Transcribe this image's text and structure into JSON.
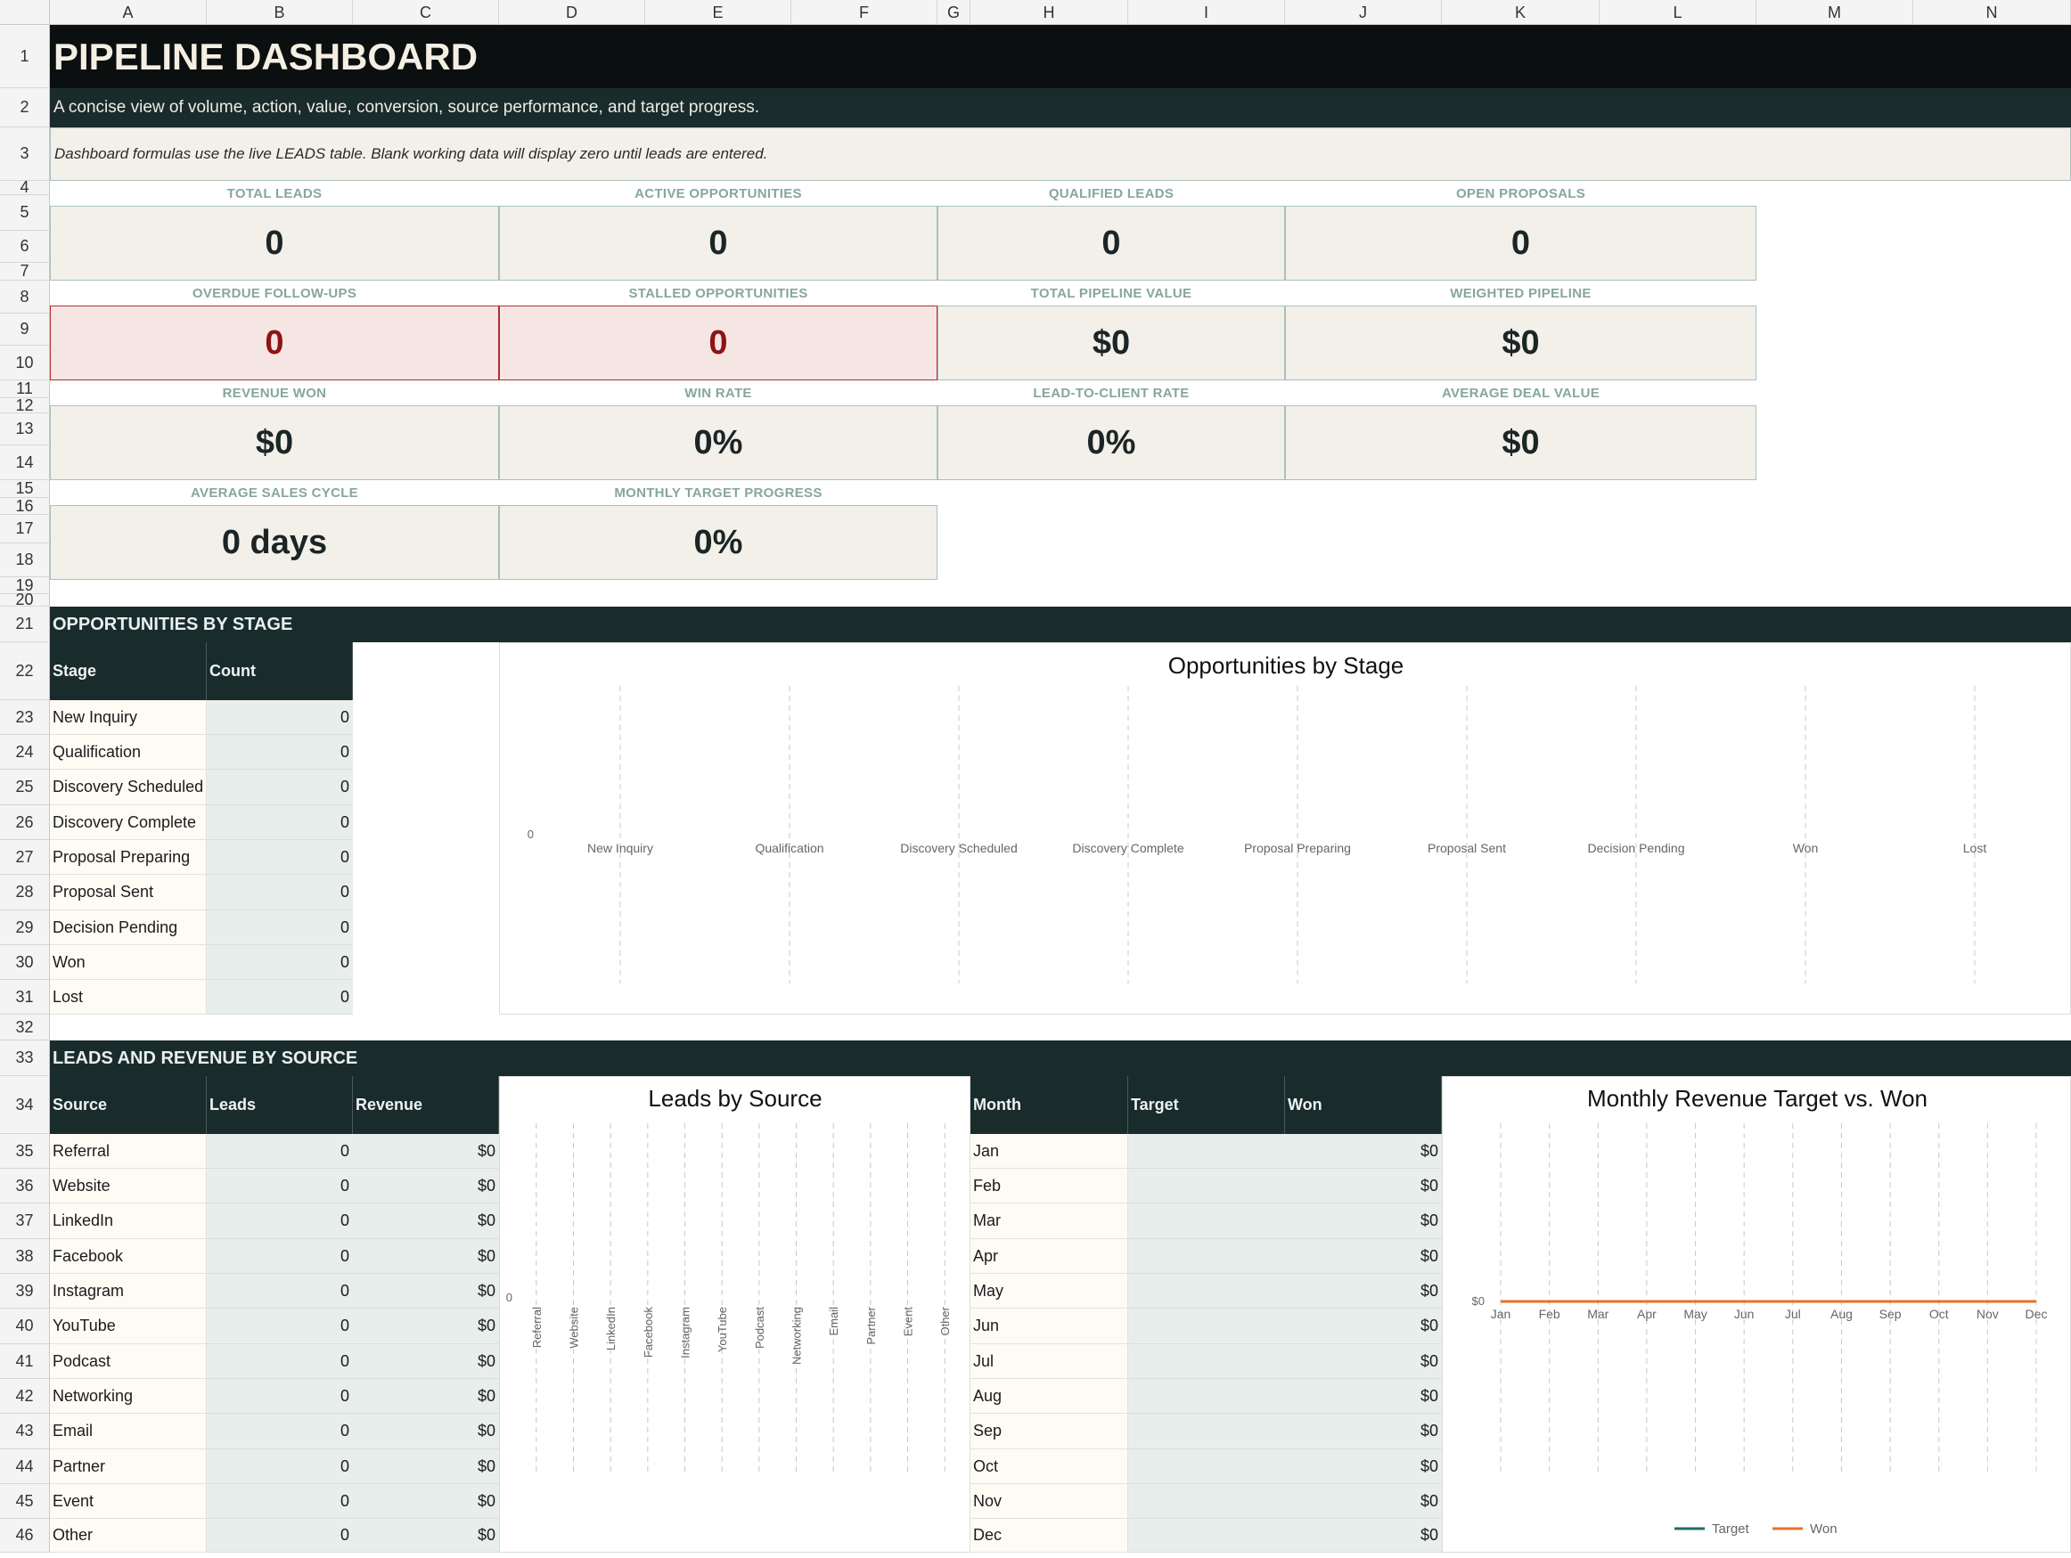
{
  "columns": [
    "A",
    "B",
    "C",
    "D",
    "E",
    "F",
    "G",
    "H",
    "I",
    "J",
    "K",
    "L",
    "M",
    "N"
  ],
  "rows": [
    "1",
    "2",
    "3",
    "4",
    "5",
    "6",
    "7",
    "8",
    "9",
    "10",
    "11",
    "12",
    "13",
    "14",
    "15",
    "16",
    "17",
    "18",
    "19",
    "20",
    "21",
    "22",
    "23",
    "24",
    "25",
    "26",
    "27",
    "28",
    "29",
    "30",
    "31",
    "32",
    "33",
    "34",
    "35",
    "36",
    "37",
    "38",
    "39",
    "40",
    "41",
    "42",
    "43",
    "44",
    "45",
    "46"
  ],
  "title": "PIPELINE DASHBOARD",
  "subtitle": "A concise view of volume, action, value, conversion, source performance, and target progress.",
  "note": "Dashboard formulas use the live LEADS table. Blank working data will display zero until leads are entered.",
  "kpis": [
    {
      "label": "TOTAL LEADS",
      "value": "0",
      "alert": false
    },
    {
      "label": "ACTIVE OPPORTUNITIES",
      "value": "0",
      "alert": false
    },
    {
      "label": "QUALIFIED LEADS",
      "value": "0",
      "alert": false
    },
    {
      "label": "OPEN PROPOSALS",
      "value": "0",
      "alert": false
    },
    {
      "label": "OVERDUE FOLLOW-UPS",
      "value": "0",
      "alert": true
    },
    {
      "label": "STALLED OPPORTUNITIES",
      "value": "0",
      "alert": true
    },
    {
      "label": "TOTAL PIPELINE VALUE",
      "value": "$0",
      "alert": false
    },
    {
      "label": "WEIGHTED PIPELINE",
      "value": "$0",
      "alert": false
    },
    {
      "label": "REVENUE WON",
      "value": "$0",
      "alert": false
    },
    {
      "label": "WIN RATE",
      "value": "0%",
      "alert": false
    },
    {
      "label": "LEAD-TO-CLIENT RATE",
      "value": "0%",
      "alert": false
    },
    {
      "label": "AVERAGE DEAL VALUE",
      "value": "$0",
      "alert": false
    },
    {
      "label": "AVERAGE SALES CYCLE",
      "value": "0 days",
      "alert": false
    },
    {
      "label": "MONTHLY TARGET PROGRESS",
      "value": "0%",
      "alert": false
    }
  ],
  "stage_section": {
    "title": "OPPORTUNITIES BY STAGE",
    "headers": [
      "Stage",
      "Count"
    ],
    "rows": [
      {
        "stage": "New Inquiry",
        "count": "0"
      },
      {
        "stage": "Qualification",
        "count": "0"
      },
      {
        "stage": "Discovery Scheduled",
        "count": "0"
      },
      {
        "stage": "Discovery Complete",
        "count": "0"
      },
      {
        "stage": "Proposal Preparing",
        "count": "0"
      },
      {
        "stage": "Proposal Sent",
        "count": "0"
      },
      {
        "stage": "Decision Pending",
        "count": "0"
      },
      {
        "stage": "Won",
        "count": "0"
      },
      {
        "stage": "Lost",
        "count": "0"
      }
    ]
  },
  "source_section": {
    "title": "LEADS AND REVENUE BY SOURCE",
    "headers": [
      "Source",
      "Leads",
      "Revenue"
    ],
    "rows": [
      {
        "source": "Referral",
        "leads": "0",
        "revenue": "$0"
      },
      {
        "source": "Website",
        "leads": "0",
        "revenue": "$0"
      },
      {
        "source": "LinkedIn",
        "leads": "0",
        "revenue": "$0"
      },
      {
        "source": "Facebook",
        "leads": "0",
        "revenue": "$0"
      },
      {
        "source": "Instagram",
        "leads": "0",
        "revenue": "$0"
      },
      {
        "source": "YouTube",
        "leads": "0",
        "revenue": "$0"
      },
      {
        "source": "Podcast",
        "leads": "0",
        "revenue": "$0"
      },
      {
        "source": "Networking",
        "leads": "0",
        "revenue": "$0"
      },
      {
        "source": "Email",
        "leads": "0",
        "revenue": "$0"
      },
      {
        "source": "Partner",
        "leads": "0",
        "revenue": "$0"
      },
      {
        "source": "Event",
        "leads": "0",
        "revenue": "$0"
      },
      {
        "source": "Other",
        "leads": "0",
        "revenue": "$0"
      }
    ]
  },
  "monthly_table": {
    "headers": [
      "Month",
      "Target",
      "Won"
    ],
    "rows": [
      {
        "month": "Jan",
        "target": "",
        "won": "$0"
      },
      {
        "month": "Feb",
        "target": "",
        "won": "$0"
      },
      {
        "month": "Mar",
        "target": "",
        "won": "$0"
      },
      {
        "month": "Apr",
        "target": "",
        "won": "$0"
      },
      {
        "month": "May",
        "target": "",
        "won": "$0"
      },
      {
        "month": "Jun",
        "target": "",
        "won": "$0"
      },
      {
        "month": "Jul",
        "target": "",
        "won": "$0"
      },
      {
        "month": "Aug",
        "target": "",
        "won": "$0"
      },
      {
        "month": "Sep",
        "target": "",
        "won": "$0"
      },
      {
        "month": "Oct",
        "target": "",
        "won": "$0"
      },
      {
        "month": "Nov",
        "target": "",
        "won": "$0"
      },
      {
        "month": "Dec",
        "target": "",
        "won": "$0"
      }
    ]
  },
  "colors": {
    "target_line": "#1f6e6a",
    "won_line": "#e8702a",
    "grid": "#c8c8c8",
    "axis_text": "#666666"
  },
  "chart_data": [
    {
      "type": "bar",
      "title": "Opportunities by Stage",
      "categories": [
        "New Inquiry",
        "Qualification",
        "Discovery Scheduled",
        "Discovery Complete",
        "Proposal Preparing",
        "Proposal Sent",
        "Decision Pending",
        "Won",
        "Lost"
      ],
      "values": [
        0,
        0,
        0,
        0,
        0,
        0,
        0,
        0,
        0
      ],
      "ytick": "0",
      "grid": true
    },
    {
      "type": "bar",
      "title": "Leads by Source",
      "categories": [
        "Referral",
        "Website",
        "LinkedIn",
        "Facebook",
        "Instagram",
        "YouTube",
        "Podcast",
        "Networking",
        "Email",
        "Partner",
        "Event",
        "Other"
      ],
      "values": [
        0,
        0,
        0,
        0,
        0,
        0,
        0,
        0,
        0,
        0,
        0,
        0
      ],
      "ytick": "0",
      "grid": true
    },
    {
      "type": "line",
      "title": "Monthly Revenue Target vs. Won",
      "x": [
        "Jan",
        "Feb",
        "Mar",
        "Apr",
        "May",
        "Jun",
        "Jul",
        "Aug",
        "Sep",
        "Oct",
        "Nov",
        "Dec"
      ],
      "series": [
        {
          "name": "Target",
          "values": [
            0,
            0,
            0,
            0,
            0,
            0,
            0,
            0,
            0,
            0,
            0,
            0
          ]
        },
        {
          "name": "Won",
          "values": [
            0,
            0,
            0,
            0,
            0,
            0,
            0,
            0,
            0,
            0,
            0,
            0
          ]
        }
      ],
      "ytick": "$0",
      "legend": "bottom",
      "grid": true
    }
  ]
}
